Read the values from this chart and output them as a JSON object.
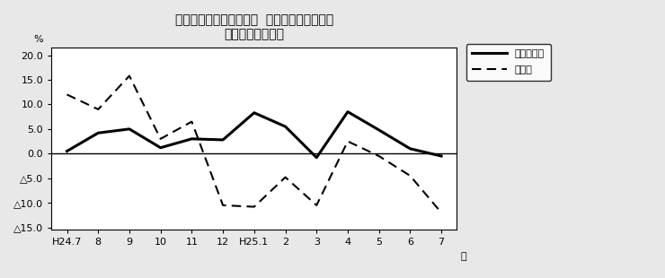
{
  "title_line1": "第２図　所定外労働時間  対前年同月比の推移",
  "title_line2": "（規模５人以上）",
  "xlabel": "月",
  "ylabel": "%",
  "x_labels": [
    "H24.7",
    "8",
    "9",
    "10",
    "11",
    "12",
    "H25.1",
    "2",
    "3",
    "4",
    "5",
    "6",
    "7"
  ],
  "series_solid": [
    0.5,
    4.2,
    5.0,
    1.2,
    3.0,
    2.8,
    8.3,
    5.5,
    -0.8,
    8.5,
    4.8,
    1.0,
    -0.5
  ],
  "series_dashed": [
    12.0,
    9.0,
    15.8,
    3.0,
    6.5,
    -10.5,
    -10.8,
    -4.8,
    -10.5,
    2.5,
    -0.5,
    -4.5,
    -12.0
  ],
  "ylim_min": -15.0,
  "ylim_max": 20.0,
  "yticks": [
    20.0,
    15.0,
    10.0,
    5.0,
    0.0,
    -5.0,
    -10.0,
    -15.0
  ],
  "legend_solid": "調査産業計",
  "legend_dashed": "製造業",
  "bg_color": "#e8e8e8",
  "plot_bg_color": "#ffffff",
  "line_color": "#000000"
}
